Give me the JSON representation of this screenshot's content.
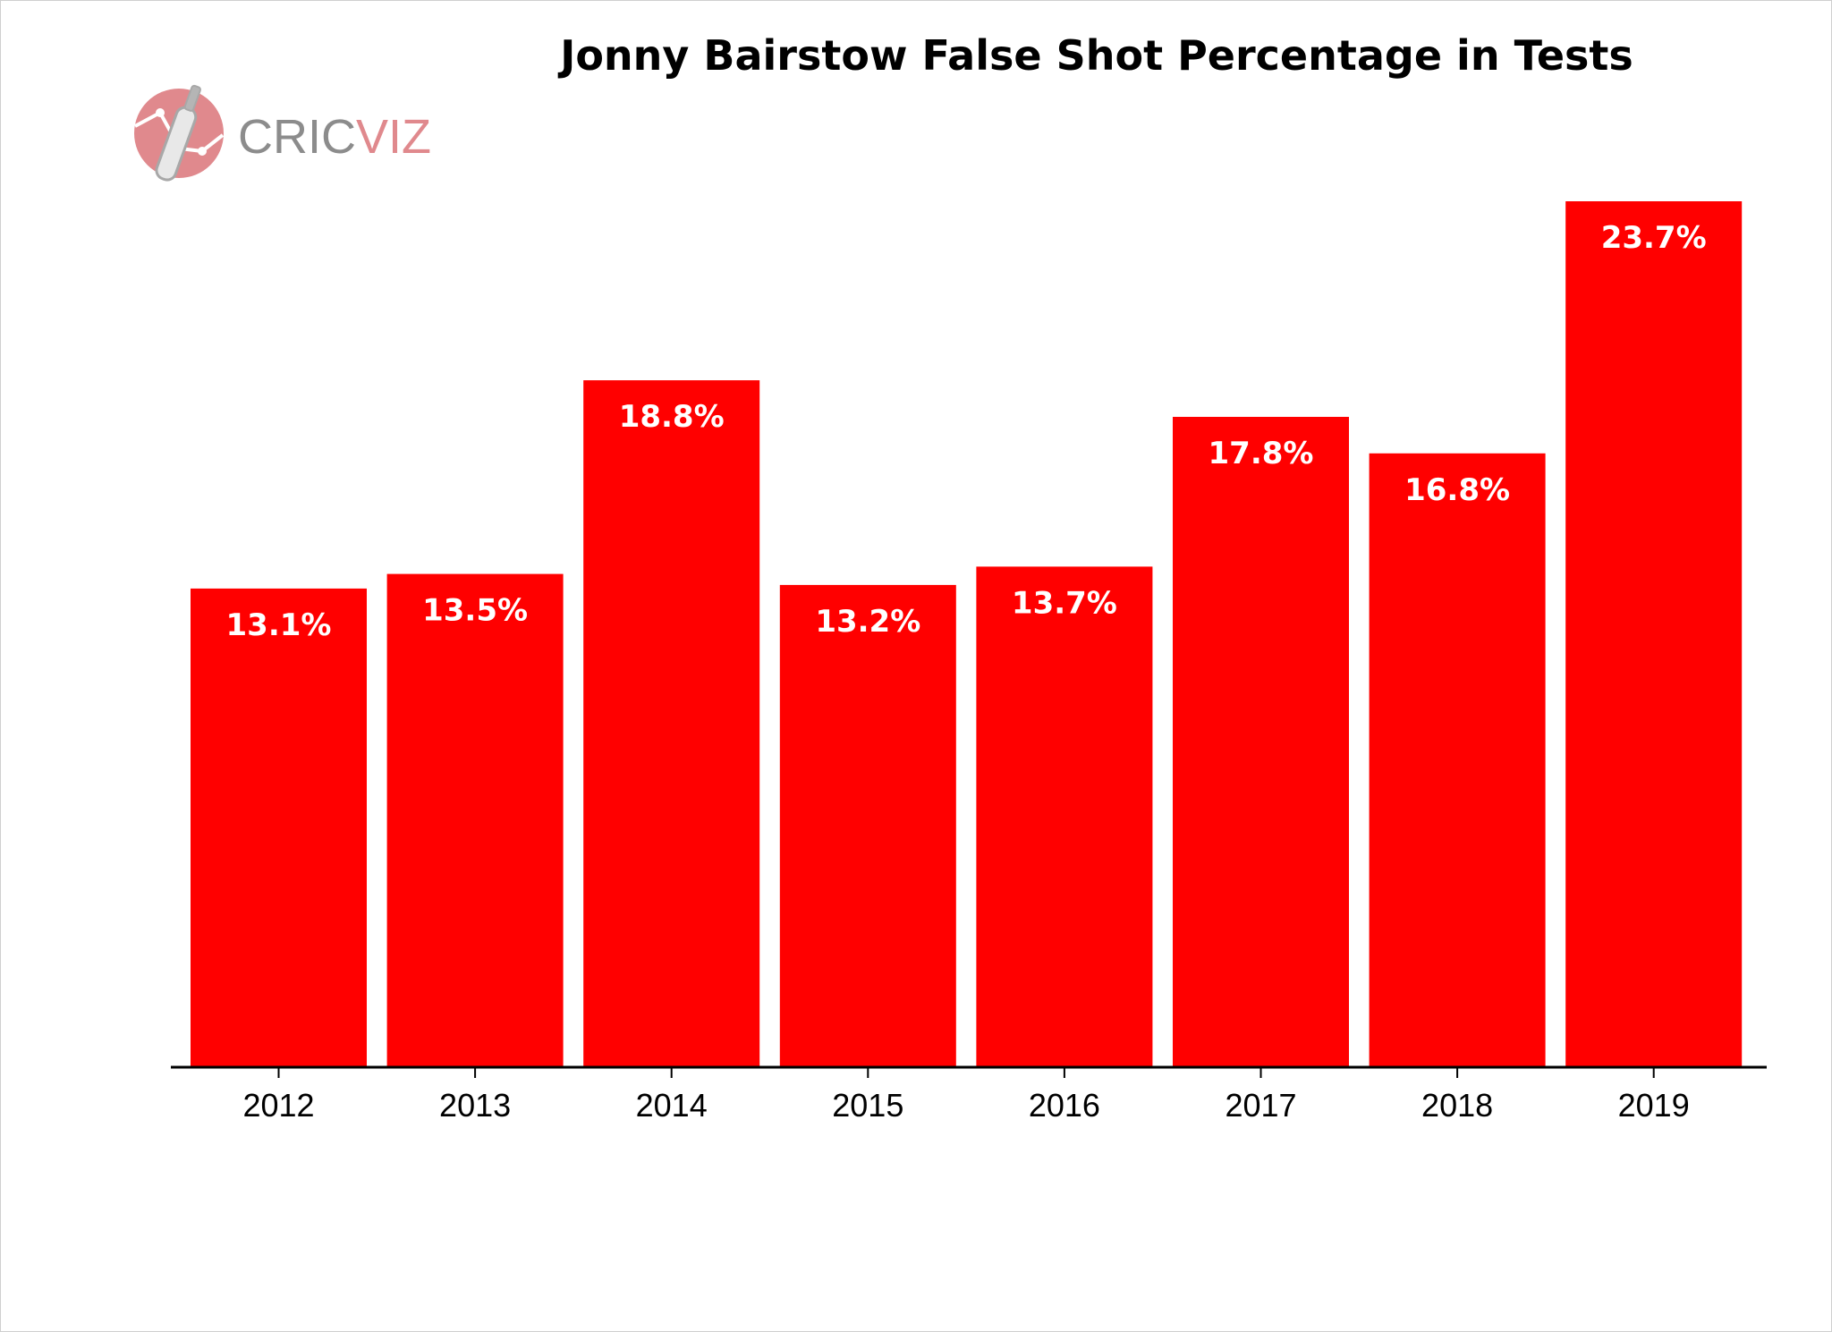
{
  "chart_data": {
    "type": "bar",
    "title": "Jonny Bairstow False Shot Percentage in Tests",
    "xlabel": "",
    "ylabel": "",
    "categories": [
      "2012",
      "2013",
      "2014",
      "2015",
      "2016",
      "2017",
      "2018",
      "2019"
    ],
    "values": [
      13.1,
      13.5,
      18.8,
      13.2,
      13.7,
      17.8,
      16.8,
      23.7
    ],
    "data_labels": [
      "13.1%",
      "13.5%",
      "18.8%",
      "13.2%",
      "13.7%",
      "17.8%",
      "16.8%",
      "23.7%"
    ],
    "ylim": [
      0,
      23.7
    ],
    "grid": false,
    "legend": "none",
    "bar_color": "#ff0000"
  },
  "logo": {
    "text_part1": "CRIC",
    "text_part2": "VIZ",
    "color_primary": "#8c8c8c",
    "color_accent": "#e0898d",
    "icon": "cricket-bat-icon"
  }
}
